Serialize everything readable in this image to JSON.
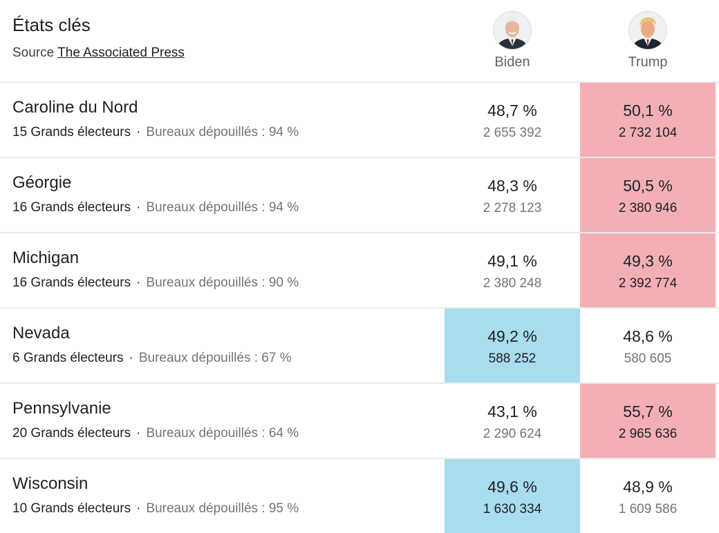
{
  "header": {
    "title": "États clés",
    "source_prefix": "Source",
    "source_link": "The Associated Press"
  },
  "candidates": [
    {
      "name": "Biden",
      "party_color": "#a8dcee"
    },
    {
      "name": "Trump",
      "party_color": "#f2b0b6"
    }
  ],
  "colors": {
    "dem_win": "#a8dcee",
    "rep_win": "#f2b0b6",
    "divider": "#e8eaed",
    "muted_text": "#70757a"
  },
  "rows": [
    {
      "state": "Caroline du Nord",
      "electors": "15 Grands électeurs",
      "dot": "·",
      "counted": "Bureaux dépouillés : 94 %",
      "winner": "trump",
      "biden": {
        "pct": "48,7 %",
        "votes": "2 655 392"
      },
      "trump": {
        "pct": "50,1 %",
        "votes": "2 732 104"
      }
    },
    {
      "state": "Géorgie",
      "electors": "16 Grands électeurs",
      "dot": "·",
      "counted": "Bureaux dépouillés : 94 %",
      "winner": "trump",
      "biden": {
        "pct": "48,3 %",
        "votes": "2 278 123"
      },
      "trump": {
        "pct": "50,5 %",
        "votes": "2 380 946"
      }
    },
    {
      "state": "Michigan",
      "electors": "16 Grands électeurs",
      "dot": "·",
      "counted": "Bureaux dépouillés : 90 %",
      "winner": "trump",
      "biden": {
        "pct": "49,1 %",
        "votes": "2 380 248"
      },
      "trump": {
        "pct": "49,3 %",
        "votes": "2 392 774"
      }
    },
    {
      "state": "Nevada",
      "electors": "6 Grands électeurs",
      "dot": "·",
      "counted": "Bureaux dépouillés : 67 %",
      "winner": "biden",
      "biden": {
        "pct": "49,2 %",
        "votes": "588 252"
      },
      "trump": {
        "pct": "48,6 %",
        "votes": "580 605"
      }
    },
    {
      "state": "Pennsylvanie",
      "electors": "20 Grands électeurs",
      "dot": "·",
      "counted": "Bureaux dépouillés : 64 %",
      "winner": "trump",
      "biden": {
        "pct": "43,1 %",
        "votes": "2 290 624"
      },
      "trump": {
        "pct": "55,7 %",
        "votes": "2 965 636"
      }
    },
    {
      "state": "Wisconsin",
      "electors": "10 Grands électeurs",
      "dot": "·",
      "counted": "Bureaux dépouillés : 95 %",
      "winner": "biden",
      "biden": {
        "pct": "49,6 %",
        "votes": "1 630 334"
      },
      "trump": {
        "pct": "48,9 %",
        "votes": "1 609 586"
      }
    }
  ]
}
